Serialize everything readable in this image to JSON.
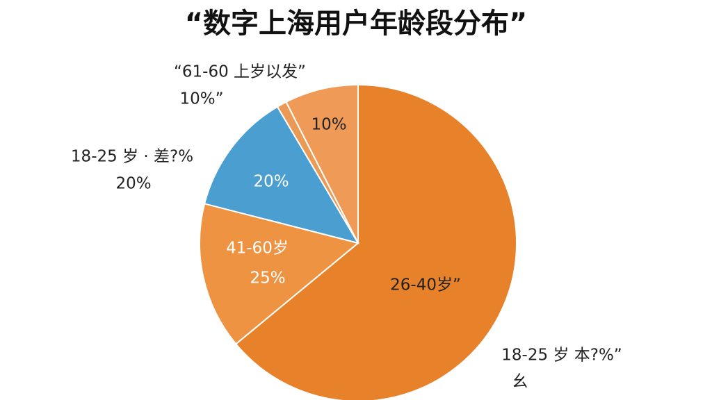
{
  "chart_data": {
    "type": "pie",
    "title": "“数字上海用户年龄段分布”",
    "categories": [
      null,
      null,
      null,
      null,
      null
    ],
    "series": [
      {
        "values": [
          64,
          15,
          12.5,
          1,
          7.5
        ],
        "colors": [
          "#e8822a",
          "#ee9342",
          "#4a9fd0",
          "#eb9a55",
          "#ef9b57"
        ]
      }
    ],
    "annotations": [
      "“61-60 上岁以发”",
      "10%”",
      "18-25 岁 · 差?%",
      "20%",
      "20%",
      "10%",
      "41-60岁",
      "25%",
      "26-40岁”",
      "18-25 岁 本?%”",
      "幺"
    ]
  }
}
